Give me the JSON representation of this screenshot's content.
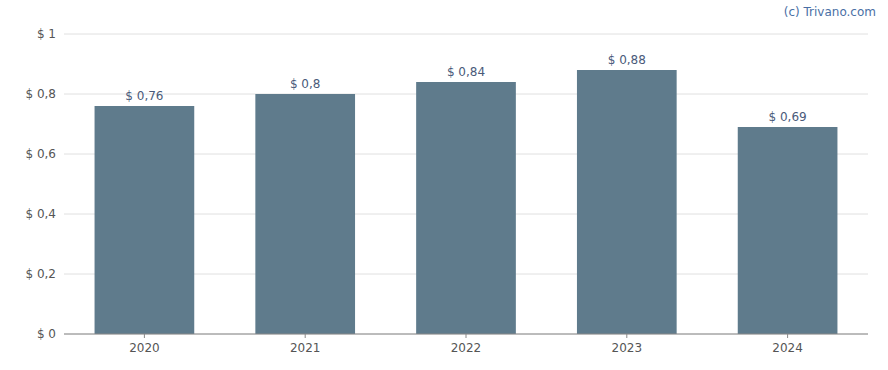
{
  "chart_data": {
    "type": "bar",
    "categories": [
      "2020",
      "2021",
      "2022",
      "2023",
      "2024"
    ],
    "values": [
      0.76,
      0.8,
      0.84,
      0.88,
      0.69
    ],
    "value_labels": [
      "$ 0,76",
      "$ 0,8",
      "$ 0,84",
      "$ 0,88",
      "$ 0,69"
    ],
    "data_labels": true,
    "color": "#5f7b8c",
    "ylim": [
      0,
      1.0
    ],
    "yticks": [
      {
        "value": 0,
        "label": "$ 0"
      },
      {
        "value": 0.2,
        "label": "$ 0,2"
      },
      {
        "value": 0.4,
        "label": "$ 0,4"
      },
      {
        "value": 0.6,
        "label": "$ 0,6"
      },
      {
        "value": 0.8,
        "label": "$ 0,8"
      },
      {
        "value": 1.0,
        "label": "$ 1"
      }
    ],
    "grid": true,
    "annotations": [
      "(c) Trivano.com"
    ]
  }
}
